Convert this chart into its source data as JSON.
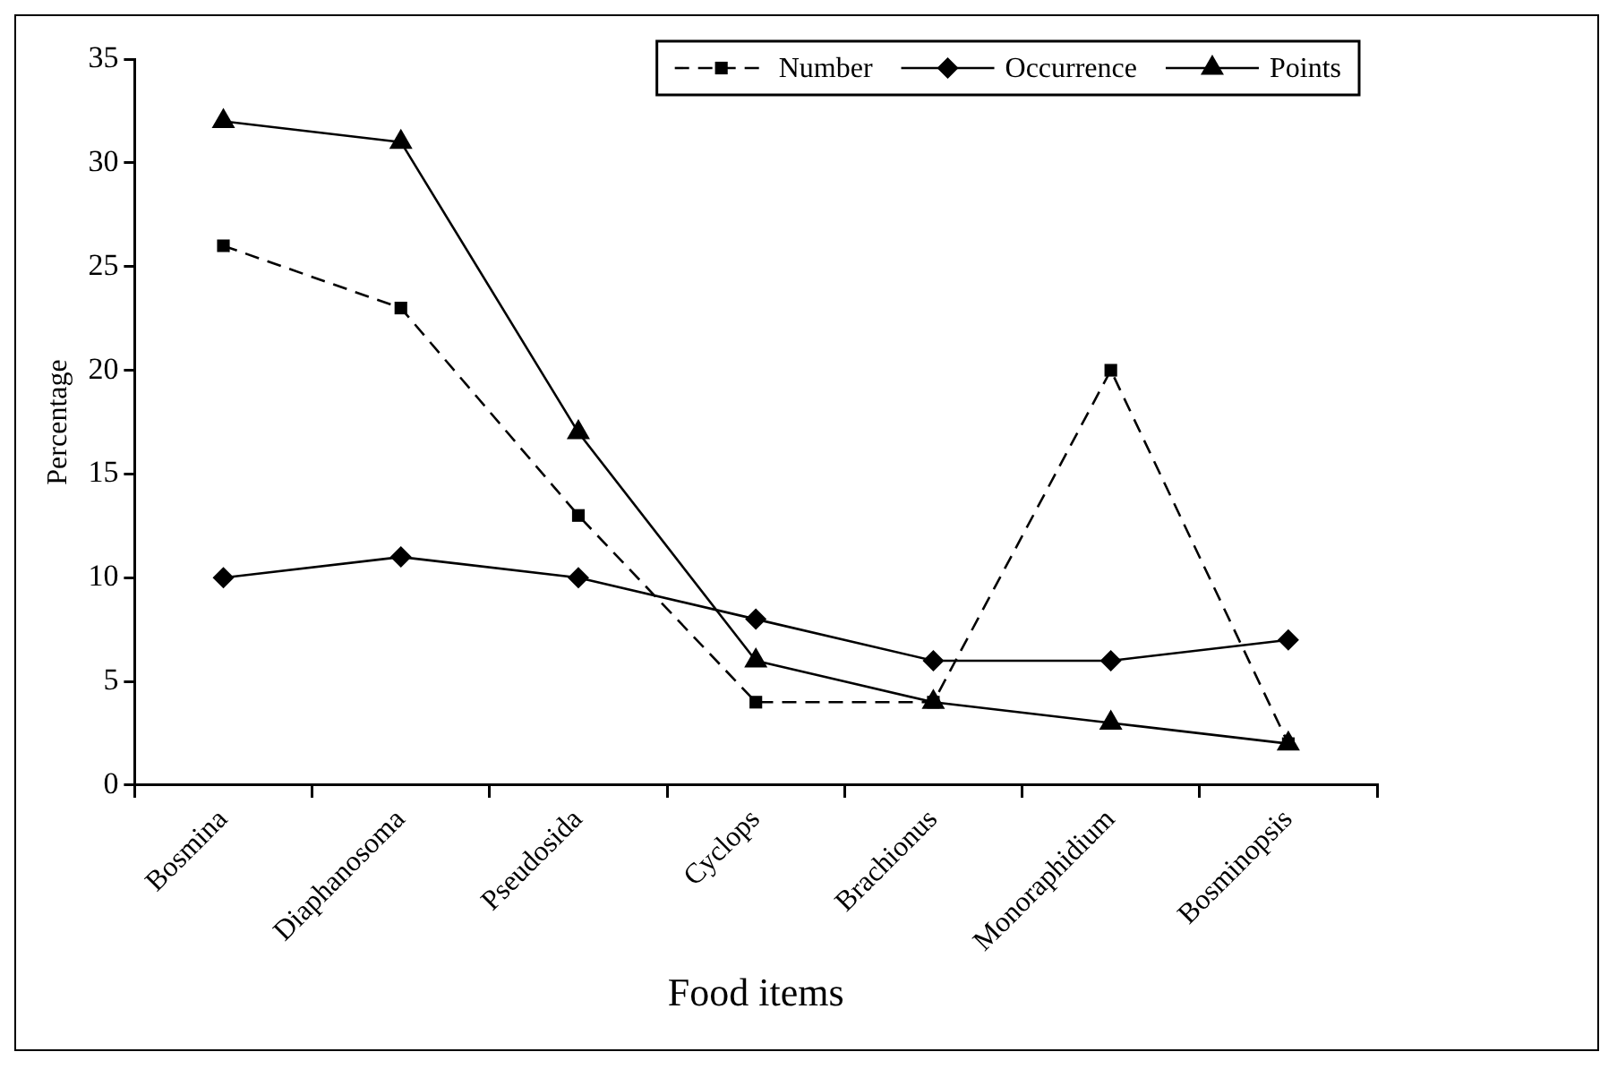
{
  "chart_data": {
    "type": "line",
    "xlabel": "Food items",
    "ylabel": "Percentage",
    "categories": [
      "Bosmina",
      "Diaphanosoma",
      "Pseudosida",
      "Cyclops",
      "Brachionus",
      "Monoraphidium",
      "Bosminopsis"
    ],
    "series": [
      {
        "name": "Number",
        "color": "#000000",
        "marker": "square",
        "line_style": "dashed",
        "values": [
          26,
          23,
          13,
          4,
          4,
          20,
          2
        ]
      },
      {
        "name": "Occurrence",
        "color": "#000000",
        "marker": "diamond",
        "line_style": "solid",
        "values": [
          10,
          11,
          10,
          8,
          6,
          6,
          7
        ]
      },
      {
        "name": "Points",
        "color": "#000000",
        "marker": "triangle",
        "line_style": "solid",
        "values": [
          32,
          31,
          17,
          6,
          4,
          3,
          2
        ]
      }
    ],
    "ylim": [
      0,
      35
    ],
    "yticks": [
      0,
      5,
      10,
      15,
      20,
      25,
      30,
      35
    ],
    "grid": false,
    "legend": "top right"
  }
}
